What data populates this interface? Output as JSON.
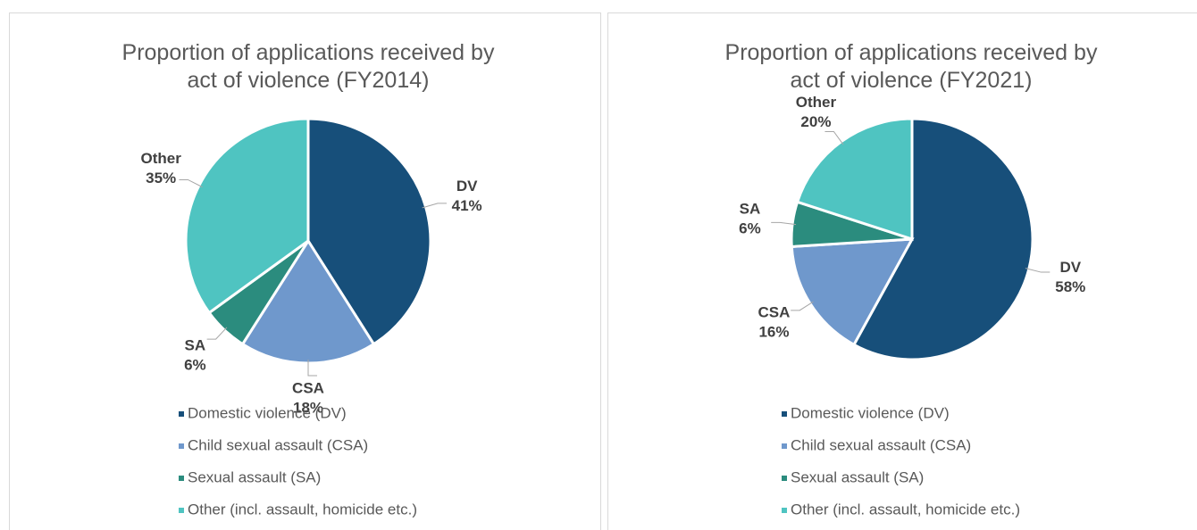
{
  "chart_data": [
    {
      "type": "pie",
      "title": "Proportion of applications received by act of violence (FY2014)",
      "categories": [
        "DV",
        "CSA",
        "SA",
        "Other"
      ],
      "values": [
        41,
        18,
        6,
        35
      ],
      "value_labels": [
        "41%",
        "18%",
        "6%",
        "35%"
      ],
      "legend": [
        "Domestic violence (DV)",
        "Child sexual assault (CSA)",
        "Sexual assault (SA)",
        "Other (incl. assault, homicide etc.)"
      ],
      "colors": [
        "#174f7a",
        "#6f98cc",
        "#2b8c7e",
        "#4fc4c1"
      ]
    },
    {
      "type": "pie",
      "title": "Proportion of applications received by act of violence (FY2021)",
      "categories": [
        "DV",
        "CSA",
        "SA",
        "Other"
      ],
      "values": [
        58,
        16,
        6,
        20
      ],
      "value_labels": [
        "58%",
        "16%",
        "6%",
        "20%"
      ],
      "legend": [
        "Domestic violence (DV)",
        "Child sexual assault (CSA)",
        "Sexual assault (SA)",
        "Other (incl. assault, homicide etc.)"
      ],
      "colors": [
        "#174f7a",
        "#6f98cc",
        "#2b8c7e",
        "#4fc4c1"
      ]
    }
  ]
}
